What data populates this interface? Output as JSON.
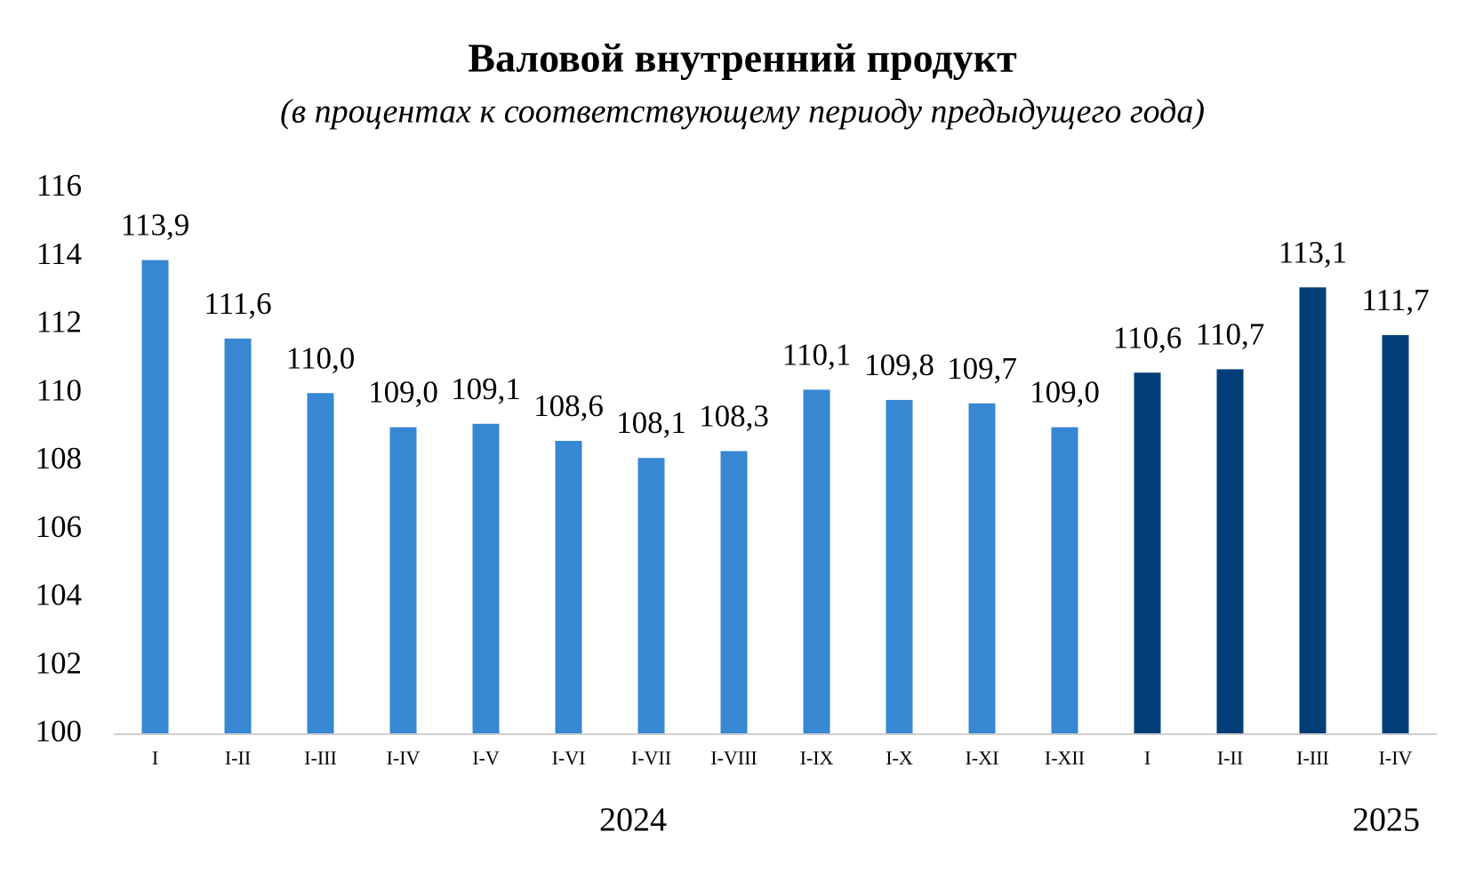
{
  "chart_data": {
    "type": "bar",
    "title": "Валовой внутренний продукт",
    "subtitle": "(в процентах к соответствующему периоду предыдущего года)",
    "categories": [
      "I",
      "I-II",
      "I-III",
      "I-IV",
      "I-V",
      "I-VI",
      "I-VII",
      "I-VIII",
      "I-IX",
      "I-X",
      "I-XI",
      "I-XII",
      "I",
      "I-II",
      "I-III",
      "I-IV"
    ],
    "values": [
      113.9,
      111.6,
      110.0,
      109.0,
      109.1,
      108.6,
      108.1,
      108.3,
      110.1,
      109.8,
      109.7,
      109.0,
      110.6,
      110.7,
      113.1,
      111.7
    ],
    "value_labels": [
      "113,9",
      "111,6",
      "110,0",
      "109,0",
      "109,1",
      "108,6",
      "108,1",
      "108,3",
      "110,1",
      "109,8",
      "109,7",
      "109,0",
      "110,6",
      "110,7",
      "113,1",
      "111,7"
    ],
    "colors": [
      "#3787d2",
      "#3787d2",
      "#3787d2",
      "#3787d2",
      "#3787d2",
      "#3787d2",
      "#3787d2",
      "#3787d2",
      "#3787d2",
      "#3787d2",
      "#3787d2",
      "#3787d2",
      "#023f78",
      "#023f78",
      "#023f78",
      "#023f78"
    ],
    "groups": [
      "2024",
      "2025"
    ],
    "ylim": [
      100,
      116
    ],
    "yticks": [
      100,
      102,
      104,
      106,
      108,
      110,
      112,
      114,
      116
    ],
    "grid": false
  }
}
